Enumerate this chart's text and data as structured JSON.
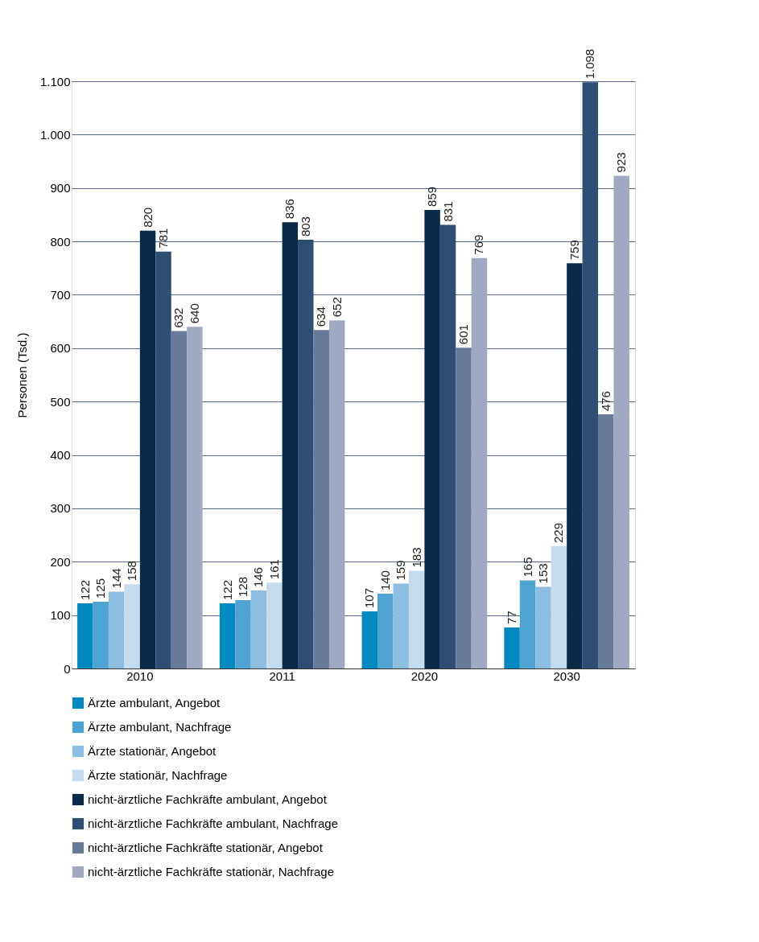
{
  "chart_data": {
    "type": "bar",
    "ylabel": "Personen (Tsd.)",
    "categories": [
      "2010",
      "2011",
      "2020",
      "2030"
    ],
    "series": [
      {
        "name": "Ärzte ambulant, Angebot",
        "color": "#0088c0",
        "values": [
          122,
          122,
          107,
          77
        ]
      },
      {
        "name": "Ärzte ambulant, Nachfrage",
        "color": "#4fa3d1",
        "values": [
          125,
          128,
          140,
          165
        ]
      },
      {
        "name": "Ärzte stationär, Angebot",
        "color": "#8dbde0",
        "values": [
          144,
          146,
          159,
          153
        ]
      },
      {
        "name": "Ärzte stationär, Nachfrage",
        "color": "#c5dcee",
        "values": [
          158,
          161,
          183,
          229
        ]
      },
      {
        "name": "nicht-ärztliche Fachkräfte ambulant, Angebot",
        "color": "#0a2a4a",
        "values": [
          820,
          836,
          859,
          759
        ]
      },
      {
        "name": "nicht-ärztliche Fachkräfte ambulant, Nachfrage",
        "color": "#2d4f73",
        "values": [
          781,
          803,
          831,
          1098
        ],
        "value_labels": [
          "781",
          "803",
          "831",
          "1.098"
        ]
      },
      {
        "name": "nicht-ärztliche Fachkräfte stationär, Angebot",
        "color": "#677a9a",
        "values": [
          632,
          634,
          601,
          476
        ]
      },
      {
        "name": "nicht-ärztliche Fachkräfte stationär, Nachfrage",
        "color": "#a0a9c2",
        "values": [
          640,
          652,
          769,
          923
        ]
      }
    ],
    "ylim": [
      0,
      1100
    ],
    "yticks": [
      0,
      100,
      200,
      300,
      400,
      500,
      600,
      700,
      800,
      900,
      {
        "value": 1000,
        "label": "1.000"
      },
      {
        "value": 1100,
        "label": "1.100"
      }
    ],
    "grid": "y",
    "legend": "bottom",
    "data_labels": true
  }
}
